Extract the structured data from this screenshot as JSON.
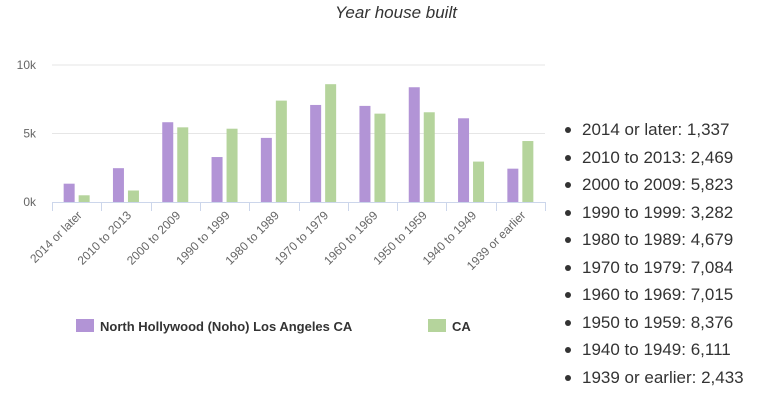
{
  "chart_data": {
    "type": "bar",
    "title": "Year house built",
    "categories": [
      "2014 or later",
      "2010 to 2013",
      "2000 to 2009",
      "1990 to 1999",
      "1980 to 1989",
      "1970 to 1979",
      "1960 to 1969",
      "1950 to 1959",
      "1940 to 1949",
      "1939 or earlier"
    ],
    "series": [
      {
        "name": "North Hollywood (Noho) Los Angeles CA",
        "color": "#b294d6",
        "values": [
          1337,
          2469,
          5823,
          3282,
          4679,
          7084,
          7015,
          8376,
          6111,
          2433
        ]
      },
      {
        "name": "CA",
        "color": "#b5d49c",
        "values": [
          490,
          840,
          5450,
          5350,
          7400,
          8600,
          6450,
          6550,
          2950,
          4450
        ]
      }
    ],
    "ylim": [
      0,
      10000
    ],
    "yticks": [
      {
        "value": 0,
        "label": "0k"
      },
      {
        "value": 5000,
        "label": "5k"
      },
      {
        "value": 10000,
        "label": "10k"
      }
    ],
    "grid": true,
    "legend": "bottom-center"
  },
  "summary": [
    {
      "text": "2014 or later: 1,337"
    },
    {
      "text": "2010 to 2013: 2,469"
    },
    {
      "text": "2000 to 2009: 5,823"
    },
    {
      "text": "1990 to 1999: 3,282"
    },
    {
      "text": "1980 to 1989: 4,679"
    },
    {
      "text": "1970 to 1979: 7,084"
    },
    {
      "text": "1960 to 1969: 7,015"
    },
    {
      "text": "1950 to 1959: 8,376"
    },
    {
      "text": "1940 to 1949: 6,111"
    },
    {
      "text": "1939 or earlier: 2,433"
    }
  ]
}
